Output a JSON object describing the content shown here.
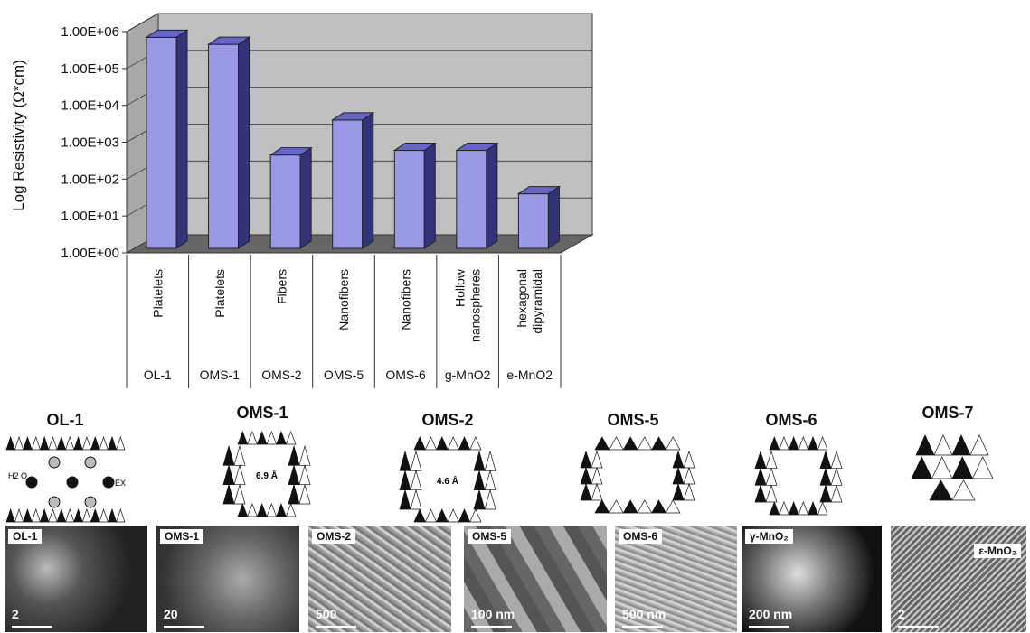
{
  "chart_data": {
    "type": "bar",
    "ylabel": "Log Resistivity (Ω*cm)",
    "xlabel": "",
    "y_scale": "log",
    "ylim": [
      1,
      1000000
    ],
    "y_ticks": [
      "1.00E+00",
      "1.00E+01",
      "1.00E+02",
      "1.00E+03",
      "1.00E+04",
      "1.00E+05",
      "1.00E+06"
    ],
    "categories": [
      {
        "morphology": [
          "Platelets"
        ],
        "material": "OL-1"
      },
      {
        "morphology": [
          "Platelets"
        ],
        "material": "OMS-1"
      },
      {
        "morphology": [
          "Fibers"
        ],
        "material": "OMS-2"
      },
      {
        "morphology": [
          "Nanofibers"
        ],
        "material": "OMS-5"
      },
      {
        "morphology": [
          "Nanofibers"
        ],
        "material": "OMS-6"
      },
      {
        "morphology": [
          "Hollow",
          "nanospheres"
        ],
        "material": "g-MnO2"
      },
      {
        "morphology": [
          "hexagonal",
          "dipyramidal"
        ],
        "material": "e-MnO2"
      }
    ],
    "values": [
      700000,
      450000,
      450,
      4000,
      600,
      600,
      40
    ],
    "bar_color": "#9999e6",
    "bar_side_color": "#33337a",
    "bar_top_color": "#6666c8",
    "wall_color": "#c0c0c0",
    "floor_color": "#666666",
    "grid": true
  },
  "structures": [
    {
      "title": "OL-1",
      "inner": [
        "H",
        "2",
        " O"
      ],
      "ex": "EX"
    },
    {
      "title": "OMS-1",
      "tunnel": "6.9 Å"
    },
    {
      "title": "OMS-2",
      "tunnel": "4.6 Å"
    },
    {
      "title": "OMS-5"
    },
    {
      "title": "OMS-6"
    },
    {
      "title": "OMS-7"
    }
  ],
  "micrographs": [
    {
      "label": "OL-1",
      "scale": "2"
    },
    {
      "label": "OMS-1",
      "scale": "20"
    },
    {
      "label": "OMS-2",
      "scale": "500"
    },
    {
      "label": "OMS-5",
      "scale": "100 nm"
    },
    {
      "label": "OMS-6",
      "scale": "500 nm"
    },
    {
      "label": "γ-MnO₂",
      "scale": "200 nm"
    },
    {
      "label": "ε-MnO₂",
      "scale": "2"
    }
  ]
}
